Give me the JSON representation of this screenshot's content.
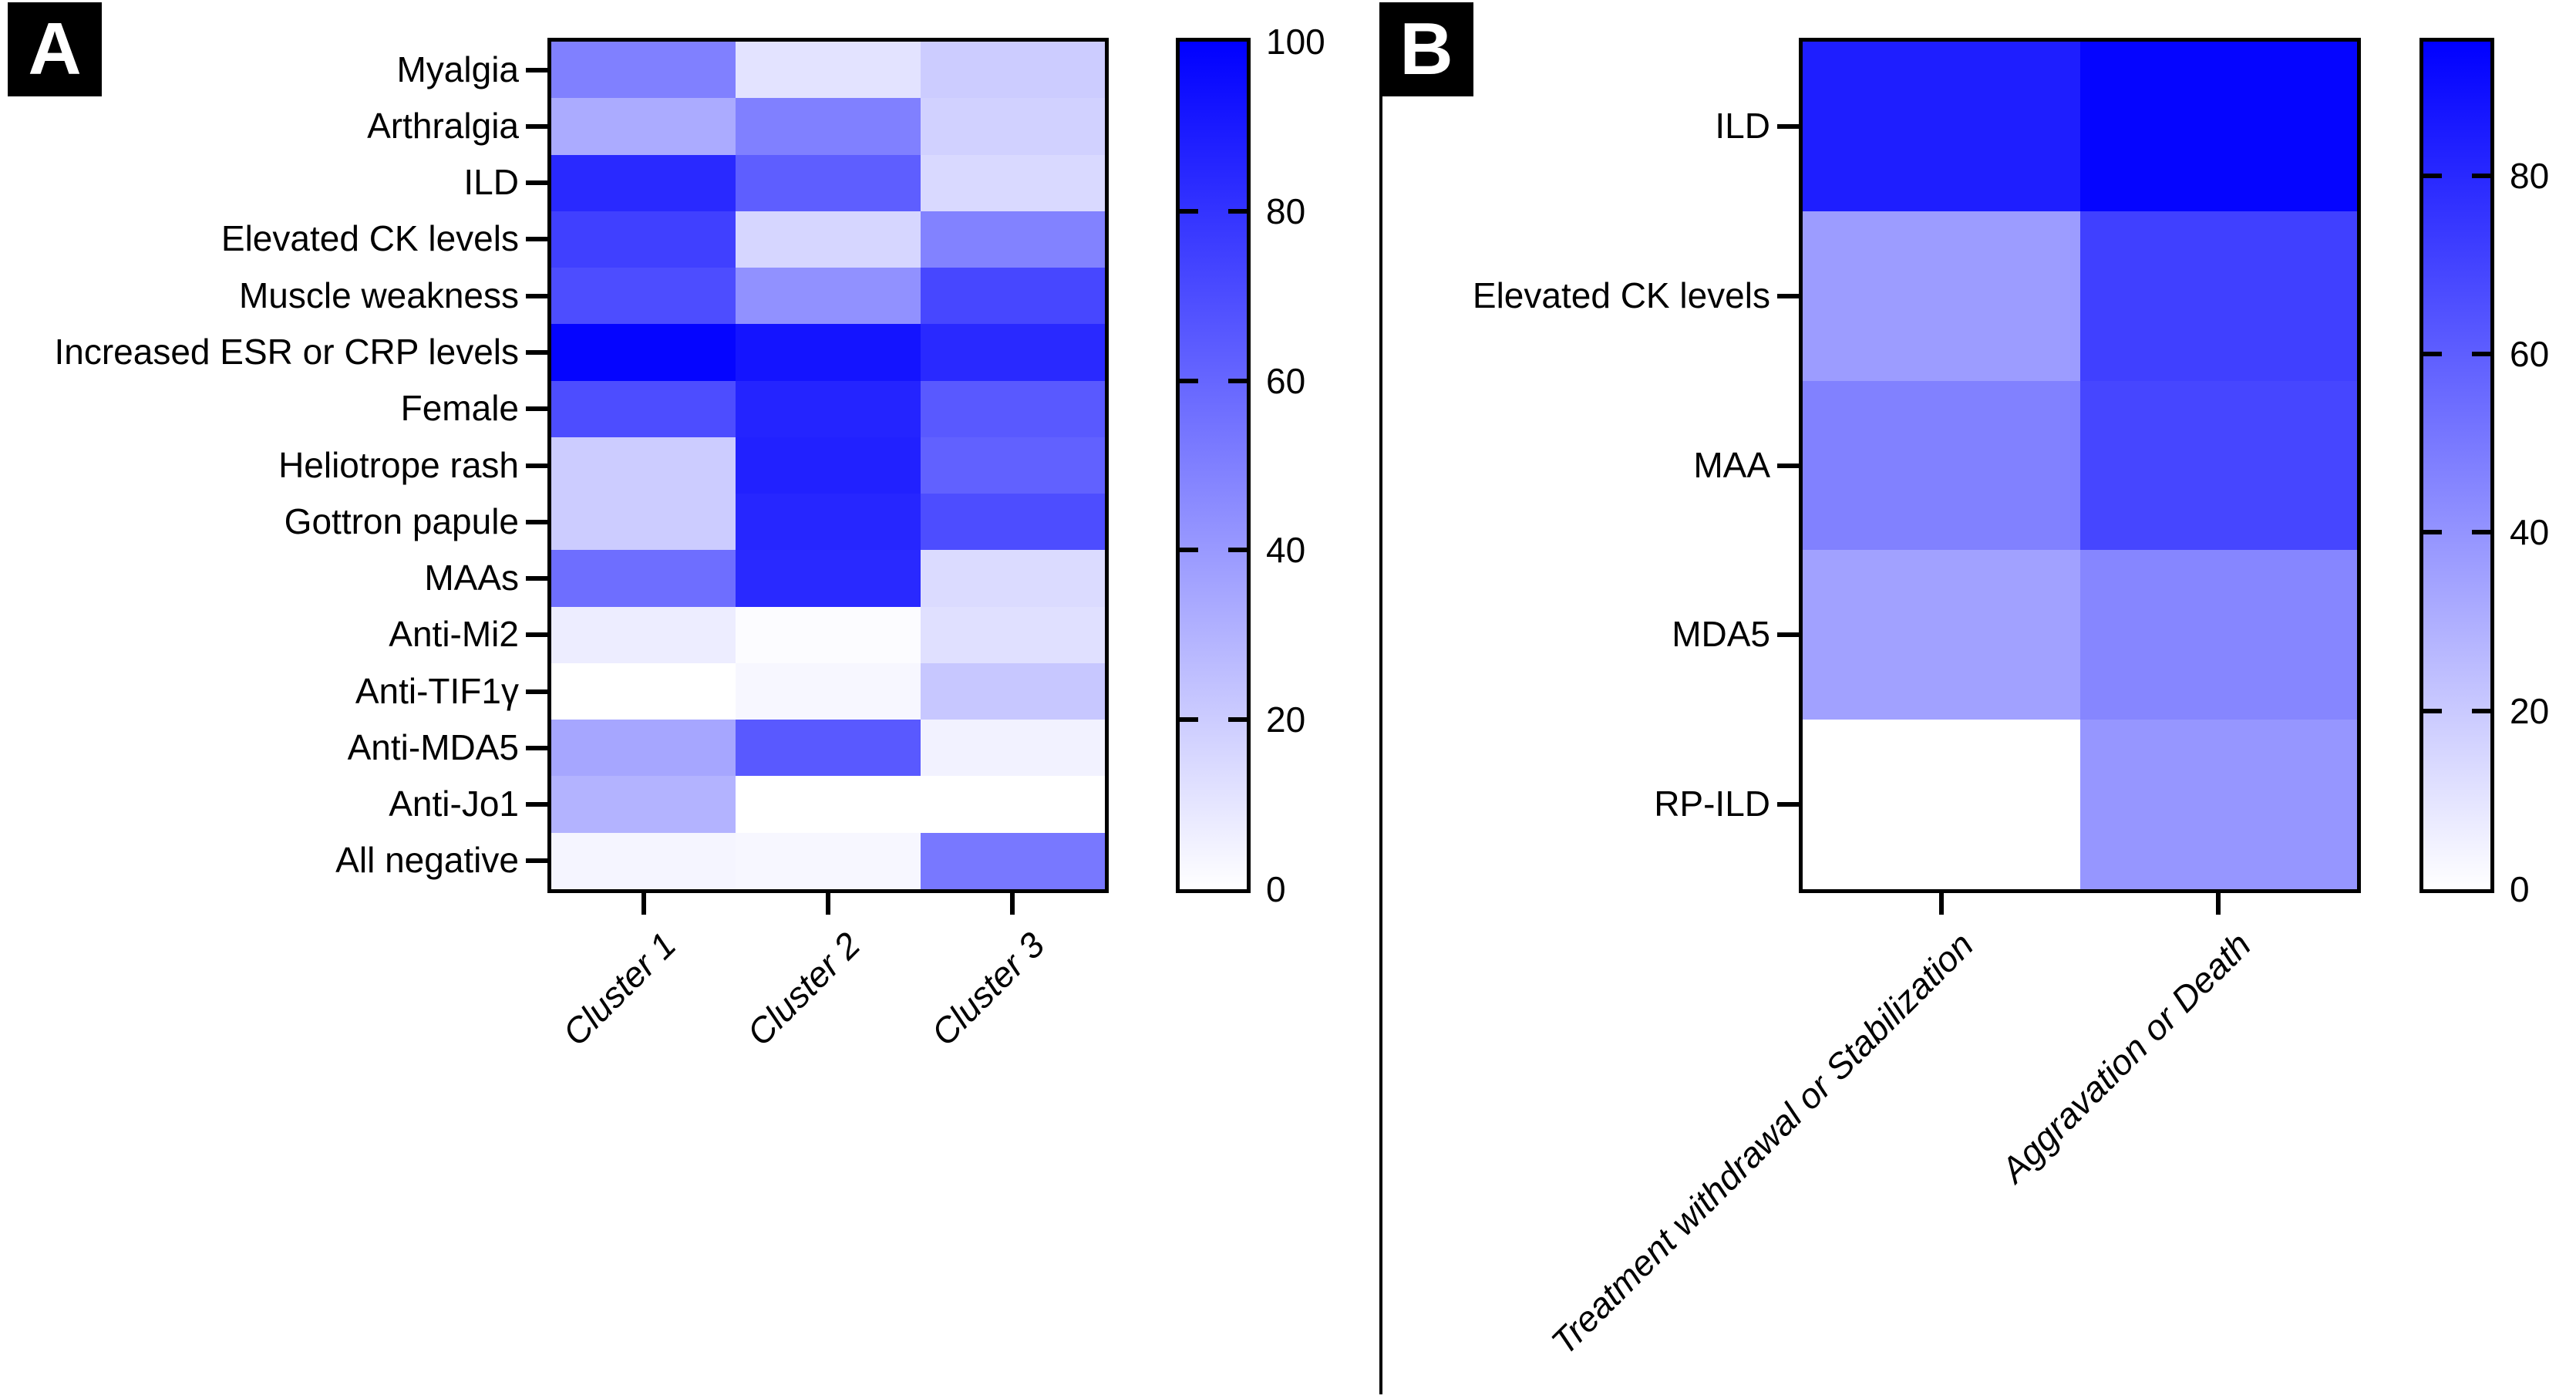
{
  "figure": {
    "background_color": "#ffffff",
    "divider_color": "#000000"
  },
  "panels": {
    "a": {
      "letter": "A"
    },
    "b": {
      "letter": "B"
    }
  },
  "colormap": {
    "low_color": "#ffffff",
    "high_color": "#0000ff"
  },
  "chart_data": [
    {
      "type": "heatmap",
      "panel": "A",
      "rows": [
        "Myalgia",
        "Arthralgia",
        "ILD",
        "Elevated CK levels",
        "Muscle weakness",
        "Increased ESR or CRP levels",
        "Female",
        "Heliotrope rash",
        "Gottron papule",
        "MAAs",
        "Anti-Mi2",
        "Anti-TIF1γ",
        "Anti-MDA5",
        "Anti-Jo1",
        "All negative"
      ],
      "columns": [
        "Cluster 1",
        "Cluster 2",
        "Cluster 3"
      ],
      "values": [
        [
          50,
          11,
          20
        ],
        [
          33,
          50,
          18
        ],
        [
          84,
          63,
          15
        ],
        [
          75,
          16,
          49
        ],
        [
          70,
          43,
          72
        ],
        [
          98,
          92,
          84
        ],
        [
          70,
          86,
          65
        ],
        [
          20,
          87,
          62
        ],
        [
          20,
          85,
          70
        ],
        [
          57,
          84,
          14
        ],
        [
          7,
          1,
          12
        ],
        [
          0,
          3,
          22
        ],
        [
          35,
          65,
          5
        ],
        [
          30,
          0,
          0
        ],
        [
          4,
          3,
          53
        ]
      ],
      "scale": {
        "min": 0,
        "max": 100,
        "colormap": "white-to-blue"
      },
      "legend_position": "right",
      "legend_ticks": [
        0,
        20,
        40,
        60,
        80,
        100
      ],
      "legend_tick_labels": [
        "0",
        "20",
        "40",
        "60",
        "80",
        "100"
      ]
    },
    {
      "type": "heatmap",
      "panel": "B",
      "rows": [
        "ILD",
        "Elevated CK levels",
        "MAA",
        "MDA5",
        "RP-ILD"
      ],
      "columns": [
        "Treatment withdrawal or Stabilization",
        "Aggravation or Death"
      ],
      "values": [
        [
          84,
          93
        ],
        [
          37,
          71
        ],
        [
          47,
          69
        ],
        [
          35,
          45
        ],
        [
          0,
          39
        ]
      ],
      "scale": {
        "min": 0,
        "max": 95,
        "colormap": "white-to-blue"
      },
      "legend_position": "right",
      "legend_ticks": [
        0,
        20,
        40,
        60,
        80
      ],
      "legend_tick_labels": [
        "0",
        "20",
        "40",
        "60",
        "80"
      ]
    }
  ]
}
